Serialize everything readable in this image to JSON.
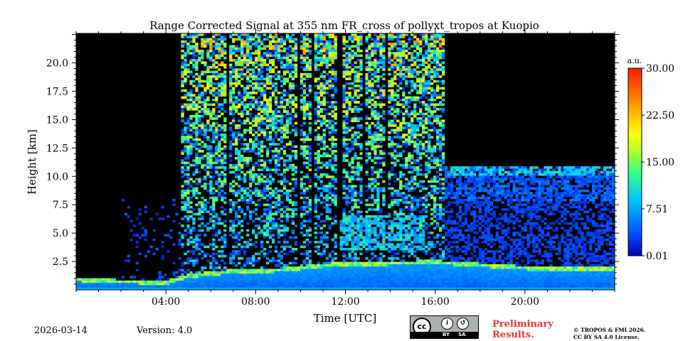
{
  "chart_data": {
    "type": "heatmap",
    "title": "Range Corrected Signal at 355 nm FR_cross of pollyxt_tropos at Kuopio",
    "xlabel": "Time [UTC]",
    "ylabel": "Height [km]",
    "xlim_hours": [
      0,
      24
    ],
    "ylim_km": [
      0,
      22.5
    ],
    "xticks": [
      {
        "value": 4,
        "label": "04:00"
      },
      {
        "value": 8,
        "label": "08:00"
      },
      {
        "value": 12,
        "label": "12:00"
      },
      {
        "value": 16,
        "label": "16:00"
      },
      {
        "value": 20,
        "label": "20:00"
      }
    ],
    "yticks": [
      {
        "value": 2.5,
        "label": "2.5"
      },
      {
        "value": 5.0,
        "label": "5.0"
      },
      {
        "value": 7.5,
        "label": "7.5"
      },
      {
        "value": 10.0,
        "label": "10.0"
      },
      {
        "value": 12.5,
        "label": "12.5"
      },
      {
        "value": 15.0,
        "label": "15.0"
      },
      {
        "value": 17.5,
        "label": "17.5"
      },
      {
        "value": 20.0,
        "label": "20.0"
      }
    ],
    "colorbar": {
      "unit": "a.u.",
      "range": [
        0.01,
        30.0
      ],
      "ticks": [
        "0.01",
        "7.51",
        "15.00",
        "22.50",
        "30.00"
      ],
      "colormap": "jet"
    },
    "features": {
      "boundary_layer_top_km_by_hour": [
        [
          0,
          1.1
        ],
        [
          2,
          0.9
        ],
        [
          4,
          0.8
        ],
        [
          5,
          1.4
        ],
        [
          7,
          1.8
        ],
        [
          9,
          1.9
        ],
        [
          11.5,
          2.4
        ],
        [
          16,
          2.6
        ],
        [
          20,
          2.1
        ],
        [
          24,
          2.0
        ]
      ],
      "high_signal_period_hours": [
        4.7,
        16.4
      ],
      "cirrus_layer": {
        "start_hour": 16.0,
        "end_hour": 24.0,
        "base_km": 7.8,
        "top_km": 10.8
      },
      "mid_aerosol_layer": {
        "start_hour": 11.8,
        "end_hour": 15.6,
        "base_km": 3.5,
        "top_km": 6.5
      }
    }
  },
  "footer": {
    "date": "2026-03-14",
    "version": "Version: 4.0",
    "preliminary_line1": "Preliminary",
    "preliminary_line2": "Results.",
    "copyright_line1": "© TROPOS & FMI 2026.",
    "copyright_line2": "CC BY SA 4.0 License.",
    "license_by": "BY",
    "license_sa": "SA"
  }
}
